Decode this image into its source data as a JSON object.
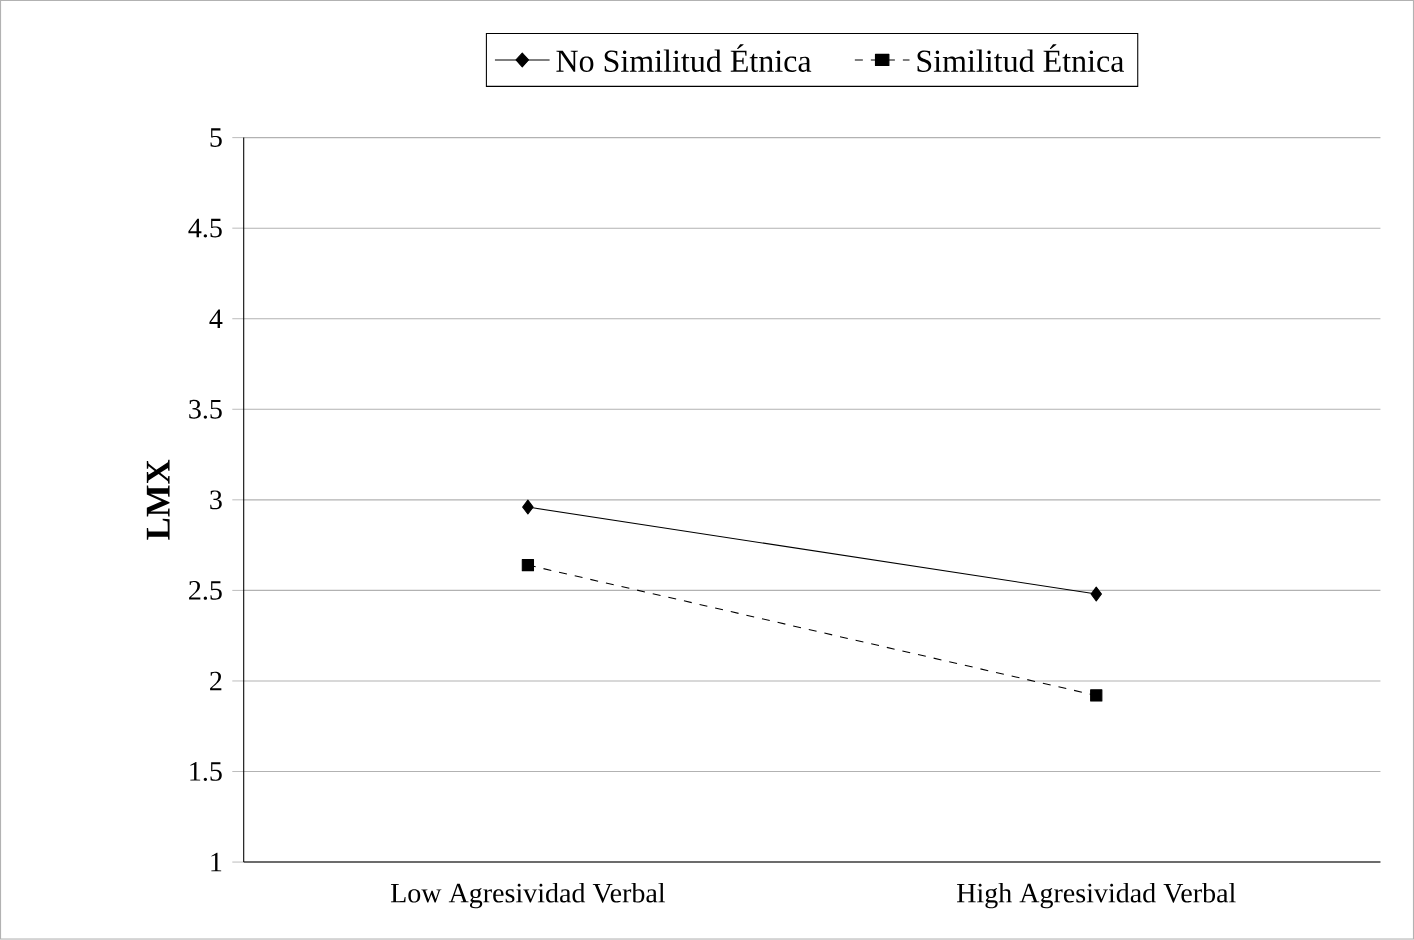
{
  "chart_data": {
    "type": "line",
    "ylabel": "LMX",
    "categories": [
      "Low Agresividad Verbal",
      "High Agresividad Verbal"
    ],
    "series": [
      {
        "name": "No Similitud Étnica",
        "color": "#000000",
        "values": [
          2.96,
          2.48
        ],
        "marker": "diamond",
        "line_style": "solid"
      },
      {
        "name": "Similitud Étnica",
        "color": "#000000",
        "values": [
          2.64,
          1.92
        ],
        "marker": "square",
        "line_style": "dashed"
      }
    ],
    "ylim": [
      1,
      5
    ],
    "yticks": [
      1,
      1.5,
      2,
      2.5,
      3,
      3.5,
      4,
      4.5,
      5
    ],
    "grid": "y",
    "legend": "top"
  }
}
